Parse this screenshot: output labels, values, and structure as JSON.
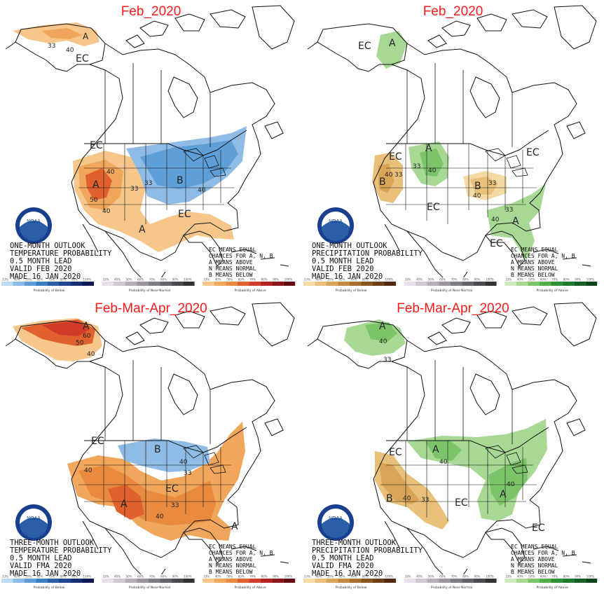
{
  "panels": [
    {
      "title": "Feb_2020",
      "caption": [
        "ONE-MONTH OUTLOOK",
        "TEMPERATURE PROBABILITY",
        "0.5 MONTH LEAD",
        "VALID FEB 2020",
        "MADE 16 JAN 2020"
      ],
      "labels": [
        "EC",
        "A",
        "40",
        "33",
        "EC",
        "A",
        "40",
        "50",
        "33",
        "B",
        "40",
        "33",
        "EC",
        "A",
        "40"
      ],
      "bar_groups": [
        "Probability of Below",
        "Probability of Near-Normal",
        "Probability of Above"
      ]
    },
    {
      "title": "Feb_2020",
      "caption": [
        "ONE-MONTH OUTLOOK",
        "PRECIPITATION PROBABILITY",
        "0.5 MONTH LEAD",
        "VALID FEB 2020",
        "MADE 16 JAN 2020"
      ],
      "labels": [
        "EC",
        "A",
        "EC",
        "A",
        "33",
        "40",
        "B",
        "40",
        "33",
        "B",
        "33",
        "40",
        "EC",
        "33",
        "40",
        "EC",
        "A",
        "EC"
      ],
      "bar_groups": [
        "Probability of Below",
        "Probability of Near-Normal",
        "Probability of Above"
      ]
    },
    {
      "title": "Feb-Mar-Apr_2020",
      "caption": [
        "THREE-MONTH OUTLOOK",
        "TEMPERATURE PROBABILITY",
        "0.5 MONTH LEAD",
        "VALID FMA 2020",
        "MADE 16 JAN 2020"
      ],
      "labels": [
        "A",
        "60",
        "50",
        "40",
        "EC",
        "B",
        "40",
        "33",
        "40",
        "EC",
        "A",
        "33",
        "40",
        "A"
      ],
      "bar_groups": [
        "Probability of Below",
        "Probability of Near-Normal",
        "Probability of Above"
      ]
    },
    {
      "title": "Feb-Mar-Apr_2020",
      "caption": [
        "THREE-MONTH OUTLOOK",
        "PRECIPITATION PROBABILITY",
        "0.5 MONTH LEAD",
        "VALID FMA 2020",
        "MADE 16 JAN 2020"
      ],
      "labels": [
        "A",
        "40",
        "33",
        "EC",
        "A",
        "40",
        "B",
        "40",
        "33",
        "EC",
        "A",
        "40",
        "EC"
      ],
      "bar_groups": [
        "Probability of Below",
        "Probability of Near-Normal",
        "Probability of Above"
      ]
    }
  ],
  "legend_ec": [
    "EC MEANS EQUAL",
    "CHANCES FOR A, N, B",
    "A MEANS ABOVE",
    "N MEANS NORMAL",
    "B MEANS BELOW"
  ],
  "bar_ticks": [
    "33%",
    "40%",
    "50%",
    "60%",
    "70%",
    "80%",
    "90%",
    "100%"
  ],
  "logo_text": "NOAA",
  "colors": {
    "below": [
      "#bfd9f2",
      "#8fbce6",
      "#5f9fd8",
      "#3b7fc4",
      "#2a5fa8",
      "#1f4590",
      "#172f74",
      "#0e1a55"
    ],
    "near": [
      "#e6e0ea",
      "#cfc9d2",
      "#b5b0b8",
      "#9a969c",
      "#7f7c82",
      "#666468",
      "#4d4b4f",
      "#333235"
    ],
    "above": [
      "#f6c68a",
      "#f0a65b",
      "#e98a3f",
      "#e0612e",
      "#d03b2a",
      "#b22523",
      "#8e151b",
      "#650a12"
    ],
    "dry": [
      "#f4dba4",
      "#e8c07a",
      "#d9a659",
      "#c48a3e",
      "#a86e2c",
      "#8a5521",
      "#6c3f18",
      "#4e2b10"
    ],
    "wet": [
      "#cfeac1",
      "#a7d894",
      "#7cc46a",
      "#52ad49",
      "#2f9137",
      "#1c7a2d",
      "#136025",
      "#0c451b"
    ]
  }
}
